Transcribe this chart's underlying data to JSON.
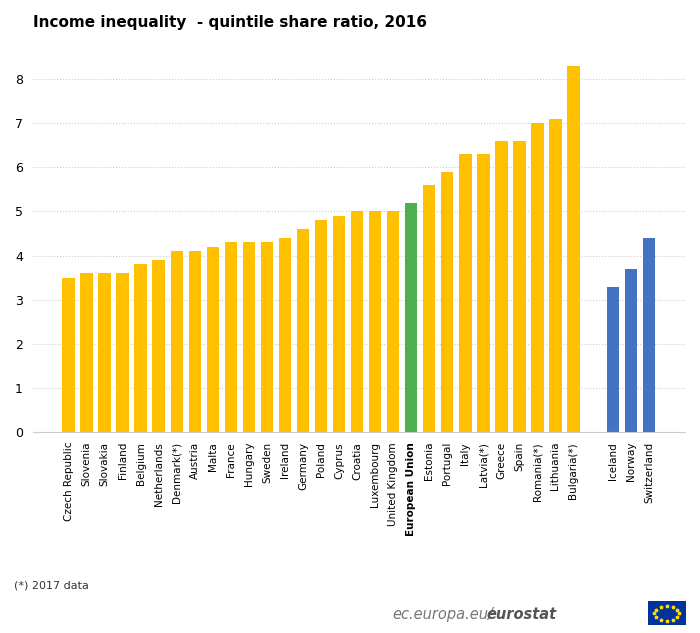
{
  "title": "Income inequality  - quintile share ratio, 2016",
  "categories": [
    "Czech Republic",
    "Slovenia",
    "Slovakia",
    "Finland",
    "Belgium",
    "Netherlands",
    "Denmark(*)",
    "Austria",
    "Malta",
    "France",
    "Hungary",
    "Sweden",
    "Ireland",
    "Germany",
    "Poland",
    "Cyprus",
    "Croatia",
    "Luxembourg",
    "United Kingdom",
    "European Union",
    "Estonia",
    "Portugal",
    "Italy",
    "Latvia(*)",
    "Greece",
    "Spain",
    "Romania(*)",
    "Lithuania",
    "Bulgaria(*)",
    "Iceland",
    "Norway",
    "Switzerland"
  ],
  "values": [
    3.5,
    3.6,
    3.6,
    3.6,
    3.8,
    3.9,
    4.1,
    4.1,
    4.2,
    4.3,
    4.3,
    4.3,
    4.4,
    4.6,
    4.8,
    4.9,
    5.0,
    5.0,
    5.0,
    5.2,
    5.6,
    5.9,
    6.3,
    6.3,
    6.6,
    6.6,
    7.0,
    7.1,
    8.3,
    3.3,
    3.7,
    4.4
  ],
  "colors": [
    "#FFC000",
    "#FFC000",
    "#FFC000",
    "#FFC000",
    "#FFC000",
    "#FFC000",
    "#FFC000",
    "#FFC000",
    "#FFC000",
    "#FFC000",
    "#FFC000",
    "#FFC000",
    "#FFC000",
    "#FFC000",
    "#FFC000",
    "#FFC000",
    "#FFC000",
    "#FFC000",
    "#FFC000",
    "#4CAF50",
    "#FFC000",
    "#FFC000",
    "#FFC000",
    "#FFC000",
    "#FFC000",
    "#FFC000",
    "#FFC000",
    "#FFC000",
    "#FFC000",
    "#4472C4",
    "#4472C4",
    "#4472C4"
  ],
  "ylim": [
    0,
    8.8
  ],
  "yticks": [
    0,
    1,
    2,
    3,
    4,
    5,
    6,
    7,
    8
  ],
  "footnote": "(*) 2017 data",
  "watermark_normal": "ec.europa.eu/",
  "watermark_bold": "eurostat",
  "bg_color": "#FFFFFF",
  "grid_color": "#CCCCCC",
  "bar_width": 0.7
}
